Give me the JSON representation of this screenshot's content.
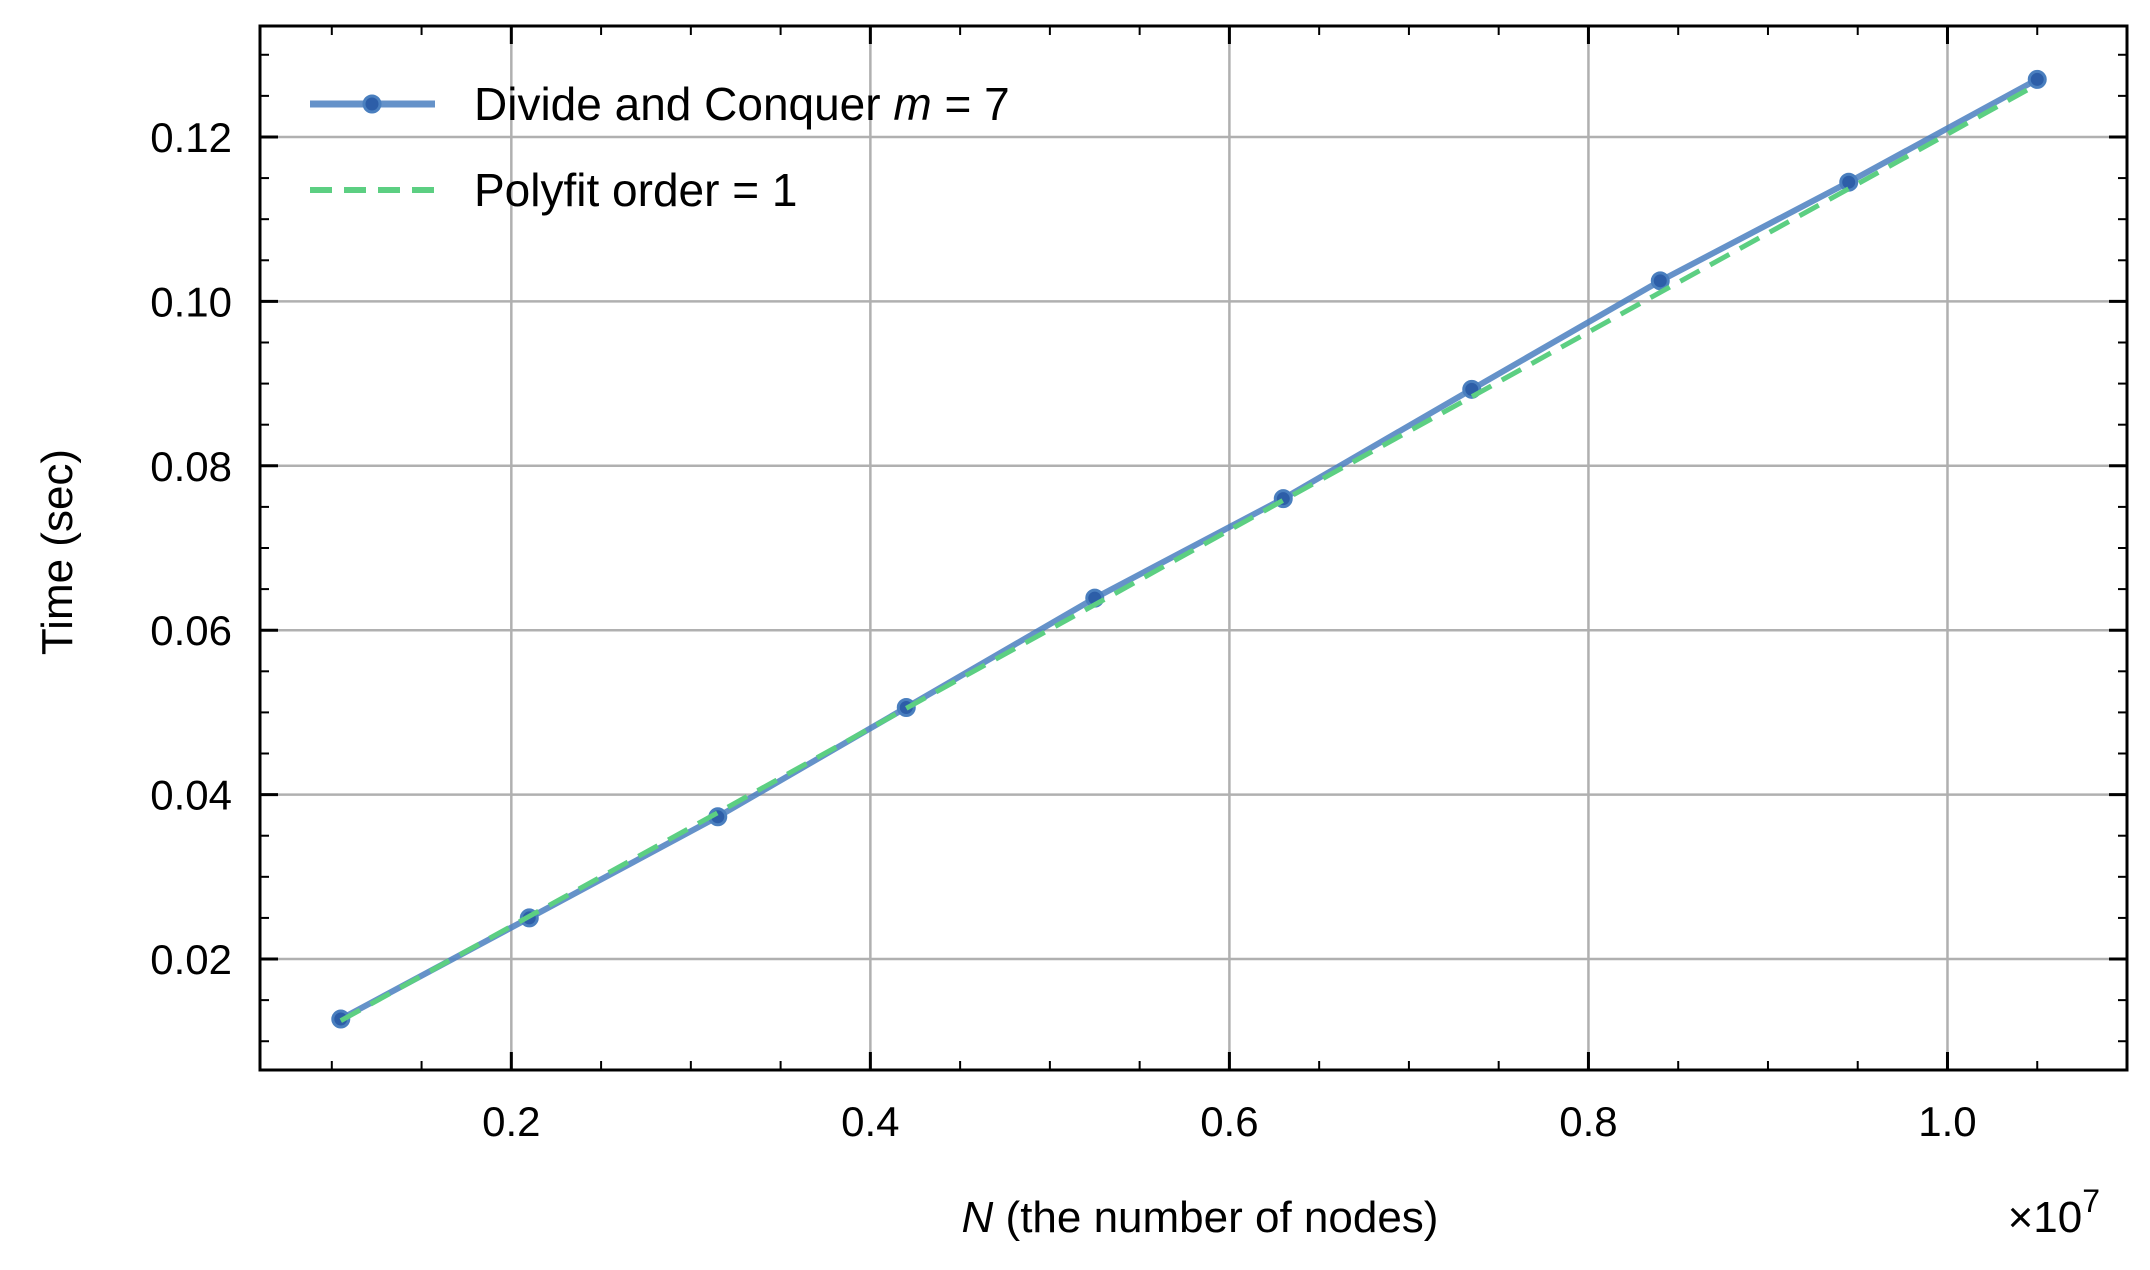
{
  "chart_data": {
    "type": "line",
    "xlabel_var": "N",
    "xlabel_text": " (the number of nodes)",
    "ylabel": "Time (sec)",
    "x_offset_text": "×10",
    "x_offset_exp": "7",
    "xlim": [
      0.06,
      1.1
    ],
    "ylim": [
      0.0065,
      0.1335
    ],
    "x_scale_note": "",
    "xticks": [
      0.2,
      0.4,
      0.6,
      0.8,
      1.0
    ],
    "xtick_labels": [
      "0.2",
      "0.4",
      "0.6",
      "0.8",
      "1.0"
    ],
    "yticks": [
      0.02,
      0.04,
      0.06,
      0.08,
      0.1,
      0.12
    ],
    "ytick_labels": [
      "0.02",
      "0.04",
      "0.06",
      "0.08",
      "0.10",
      "0.12"
    ],
    "grid": true,
    "legend_placement": "top-left",
    "series": [
      {
        "name": "Divide and Conquer",
        "name_var": "m",
        "name_suffix": " = 7",
        "style": "solid-marker",
        "color": "#4a7fbf",
        "marker_color": "#2d5ea8",
        "x": [
          0.105,
          0.21,
          0.315,
          0.42,
          0.525,
          0.63,
          0.735,
          0.84,
          0.945,
          1.05
        ],
        "y": [
          0.0127,
          0.025,
          0.0373,
          0.0506,
          0.0639,
          0.076,
          0.0893,
          0.1025,
          0.1145,
          0.127
        ]
      },
      {
        "name": "Polyfit order = 1",
        "style": "dashed",
        "color": "#5ccf82",
        "x": [
          0.105,
          0.21,
          0.315,
          0.42,
          0.525,
          0.63,
          0.735,
          0.84,
          0.945,
          1.05
        ],
        "y": [
          0.0125,
          0.0252,
          0.0378,
          0.0505,
          0.0631,
          0.0758,
          0.0884,
          0.1011,
          0.1137,
          0.1264
        ]
      }
    ]
  }
}
